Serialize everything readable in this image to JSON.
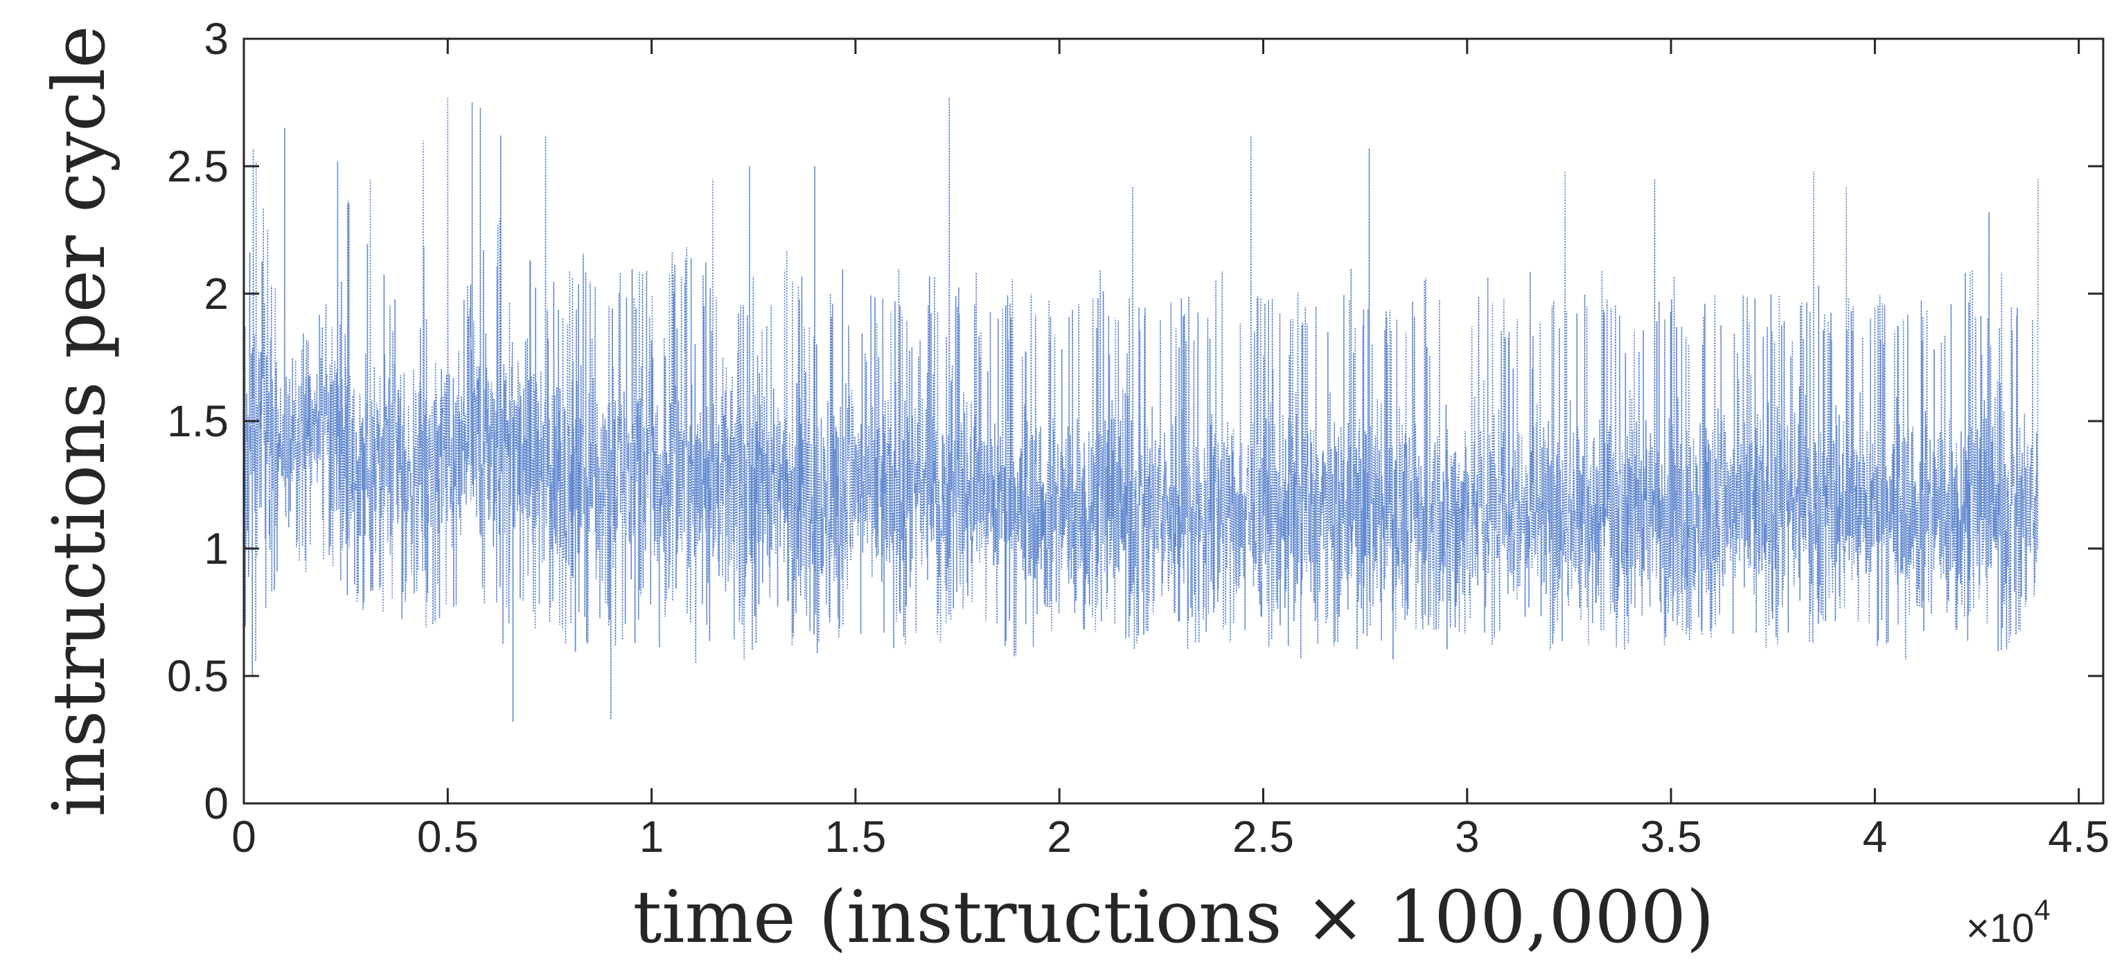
{
  "chart_data": {
    "type": "line",
    "title": "",
    "xlabel": "time (instructions × 100,000)",
    "ylabel": "instructions per cycle",
    "x_multiplier": {
      "prefix": "×",
      "base": "10",
      "exponent": "4"
    },
    "xlim": [
      0,
      45600
    ],
    "ylim": [
      0,
      3
    ],
    "xticks": [
      0,
      5000,
      10000,
      15000,
      20000,
      25000,
      30000,
      35000,
      40000,
      45000
    ],
    "xtick_labels": [
      "0",
      "0.5",
      "1",
      "1.5",
      "2",
      "2.5",
      "3",
      "3.5",
      "4",
      "4.5"
    ],
    "yticks": [
      0,
      0.5,
      1,
      1.5,
      2,
      2.5,
      3
    ],
    "ytick_labels": [
      "0",
      "0.5",
      "1",
      "1.5",
      "2",
      "2.5",
      "3"
    ],
    "grid": false,
    "legend": "none",
    "line_style": "dotted",
    "series": [
      {
        "color": "#3f6fc4",
        "x_step": 200,
        "mean": [
          1.4,
          1.5,
          1.55,
          1.45,
          1.4,
          1.4,
          1.38,
          1.45,
          1.5,
          1.55,
          1.5,
          1.45,
          1.4,
          1.35,
          1.3,
          1.3,
          1.35,
          1.4,
          1.38,
          1.35,
          1.3,
          1.3,
          1.35,
          1.4,
          1.4,
          1.35,
          1.35,
          1.4,
          1.45,
          1.4,
          1.35,
          1.35,
          1.38,
          1.4,
          1.4,
          1.35,
          1.3,
          1.3,
          1.3,
          1.28,
          1.25,
          1.25,
          1.28,
          1.3,
          1.3,
          1.3,
          1.3,
          1.32,
          1.32,
          1.3,
          1.28,
          1.25,
          1.25,
          1.25,
          1.28,
          1.3,
          1.28,
          1.25,
          1.25,
          1.25,
          1.25,
          1.25,
          1.25,
          1.25,
          1.25,
          1.25,
          1.25,
          1.25,
          1.25,
          1.25,
          1.22,
          1.2,
          1.2,
          1.22,
          1.25,
          1.25,
          1.22,
          1.2,
          1.2,
          1.2,
          1.2,
          1.2,
          1.22,
          1.22,
          1.2,
          1.18,
          1.18,
          1.2,
          1.2,
          1.2,
          1.2,
          1.2,
          1.18,
          1.15,
          1.15,
          1.15,
          1.15,
          1.15,
          1.15,
          1.15,
          1.15,
          1.15,
          1.15,
          1.15,
          1.15,
          1.15,
          1.15,
          1.15,
          1.15,
          1.15,
          1.15,
          1.15,
          1.15,
          1.15,
          1.15,
          1.15,
          1.15,
          1.15,
          1.15,
          1.15,
          1.15,
          1.15,
          1.15,
          1.15,
          1.15,
          1.15,
          1.15,
          1.15,
          1.15,
          1.15,
          1.15,
          1.15,
          1.15,
          1.15,
          1.15,
          1.15,
          1.15,
          1.15,
          1.15,
          1.15,
          1.15,
          1.15,
          1.15,
          1.15,
          1.15,
          1.15,
          1.15,
          1.15,
          1.15,
          1.15,
          1.15,
          1.15,
          1.15,
          1.15,
          1.15,
          1.15,
          1.15,
          1.15,
          1.15,
          1.15,
          1.15,
          1.15,
          1.15,
          1.15,
          1.15,
          1.15,
          1.15,
          1.15,
          1.15,
          1.15,
          1.15,
          1.15,
          1.15,
          1.15,
          1.15,
          1.15,
          1.15,
          1.15,
          1.15,
          1.15,
          1.15,
          1.15,
          1.15,
          1.15,
          1.15,
          1.15,
          1.15,
          1.15,
          1.15,
          1.15,
          1.15,
          1.15,
          1.15,
          1.15,
          1.15,
          1.15,
          1.15,
          1.15,
          1.15,
          1.15,
          1.15,
          1.15,
          1.15,
          1.15,
          1.15,
          1.15,
          1.15,
          1.15,
          1.15,
          1.15,
          1.15,
          1.15,
          1.15,
          1.15,
          1.15,
          1.15,
          1.15,
          1.15,
          1.15,
          1.15,
          1.15,
          1.15,
          1.15,
          1.15,
          1.15,
          1.15,
          1.15,
          1.15
        ],
        "max": [
          2.3,
          2.65,
          2.5,
          2.2,
          1.8,
          2.0,
          2.2,
          1.9,
          1.7,
          2.05,
          2.1,
          2.2,
          2.55,
          1.8,
          2.1,
          2.2,
          1.9,
          2.2,
          2.0,
          1.9,
          2.0,
          2.0,
          2.2,
          2.0,
          2.1,
          1.9,
          2.15,
          2.1,
          2.2,
          2.3,
          2.1,
          2.3,
          2.2,
          2.0,
          2.1,
          2.2,
          2.0,
          2.1,
          2.15,
          2.1,
          2.1,
          2.2,
          2.1,
          2.2,
          2.1,
          2.0,
          2.1,
          2.2,
          2.15,
          2.1,
          2.0,
          2.0,
          2.2,
          2.1,
          2.2,
          2.2,
          2.2,
          2.05,
          2.1,
          2.0,
          2.0,
          2.0,
          2.3,
          2.1,
          2.1,
          2.0,
          2.2,
          2.15,
          2.1,
          2.0,
          2.0,
          2.2,
          2.1,
          2.1,
          2.0,
          2.0,
          2.0,
          2.1,
          2.0,
          2.1,
          2.1,
          2.0,
          2.0,
          2.0,
          2.1,
          2.0,
          1.9,
          2.1,
          2.0,
          2.1,
          2.0,
          2.1,
          2.0,
          2.0,
          2.1,
          2.0,
          2.1,
          2.0,
          2.0,
          2.0,
          2.0,
          2.1,
          2.0,
          2.0,
          2.0,
          2.1,
          2.0,
          2.1,
          2.0,
          2.0,
          2.0,
          2.1,
          2.0,
          2.1,
          2.0,
          2.0,
          2.0,
          2.0,
          2.0,
          2.1,
          2.0,
          2.0,
          2.0,
          2.1,
          2.0,
          2.0,
          2.1,
          2.0,
          2.0,
          2.1,
          2.0,
          2.0,
          2.0,
          2.0,
          2.0,
          2.1,
          2.0,
          2.0,
          2.0,
          2.1,
          2.0,
          2.0,
          2.0,
          2.0,
          2.1,
          2.0,
          2.0,
          2.0,
          2.1,
          2.0,
          2.0,
          2.0,
          2.1,
          2.0,
          2.0,
          2.0,
          2.0,
          2.1,
          2.0,
          2.0,
          2.0,
          2.0,
          2.1,
          2.0,
          2.0,
          2.0,
          2.1,
          2.0,
          2.0,
          2.0,
          2.1,
          2.0,
          2.0,
          2.0,
          2.0,
          2.1,
          2.0,
          2.0,
          2.0,
          2.1,
          2.0,
          2.0,
          2.0,
          2.0,
          2.1,
          2.0,
          2.0,
          2.0,
          2.1,
          2.0,
          2.0,
          2.0,
          2.0,
          2.1,
          2.0,
          2.0,
          2.0,
          2.1,
          2.0,
          2.0,
          2.0,
          2.0,
          2.1,
          2.0,
          2.0,
          2.0,
          2.1,
          2.0,
          2.0,
          2.0,
          2.0,
          2.1,
          2.0,
          2.0,
          2.0,
          2.1,
          2.0,
          2.0,
          2.0,
          2.0
        ],
        "min": [
          0.6,
          0.45,
          0.7,
          0.8,
          0.9,
          0.95,
          0.9,
          0.85,
          0.9,
          0.95,
          0.9,
          0.85,
          0.8,
          0.75,
          0.7,
          0.65,
          0.7,
          0.75,
          0.7,
          0.7,
          0.65,
          0.7,
          0.65,
          0.7,
          0.7,
          0.6,
          0.7,
          0.7,
          0.75,
          0.7,
          0.7,
          0.6,
          0.65,
          0.7,
          0.7,
          0.65,
          0.6,
          0.6,
          0.6,
          0.6,
          0.55,
          0.6,
          0.6,
          0.6,
          0.6,
          0.6,
          0.6,
          0.6,
          0.65,
          0.6,
          0.55,
          0.6,
          0.6,
          0.6,
          0.6,
          0.55,
          0.6,
          0.6,
          0.6,
          0.6,
          0.6,
          0.55,
          0.6,
          0.6,
          0.6,
          0.6,
          0.6,
          0.6,
          0.6,
          0.6,
          0.55,
          0.6,
          0.6,
          0.6,
          0.6,
          0.6,
          0.6,
          0.55,
          0.6,
          0.6,
          0.6,
          0.6,
          0.6,
          0.6,
          0.6,
          0.6,
          0.6,
          0.6,
          0.6,
          0.6,
          0.6,
          0.6,
          0.6,
          0.6,
          0.55,
          0.6,
          0.6,
          0.6,
          0.6,
          0.6,
          0.6,
          0.6,
          0.6,
          0.6,
          0.6,
          0.55,
          0.6,
          0.6,
          0.6,
          0.6,
          0.6,
          0.6,
          0.6,
          0.6,
          0.6,
          0.6,
          0.55,
          0.6,
          0.6,
          0.6,
          0.6,
          0.6,
          0.6,
          0.6,
          0.6,
          0.6,
          0.6,
          0.6,
          0.55,
          0.6,
          0.6,
          0.6,
          0.6,
          0.6,
          0.6,
          0.6,
          0.6,
          0.6,
          0.6,
          0.6,
          0.55,
          0.6,
          0.6,
          0.6,
          0.6,
          0.6,
          0.6,
          0.6,
          0.6,
          0.6,
          0.6,
          0.6,
          0.6,
          0.55,
          0.6,
          0.6,
          0.6,
          0.6,
          0.6,
          0.6,
          0.6,
          0.6,
          0.6,
          0.6,
          0.6,
          0.55,
          0.6,
          0.6,
          0.6,
          0.6,
          0.6,
          0.6,
          0.6,
          0.6,
          0.6,
          0.6,
          0.6,
          0.6,
          0.55,
          0.6,
          0.6,
          0.6,
          0.6,
          0.6,
          0.6,
          0.6,
          0.6,
          0.6,
          0.6,
          0.6,
          0.55,
          0.6,
          0.6,
          0.6,
          0.6,
          0.6,
          0.6,
          0.6,
          0.6,
          0.6,
          0.6,
          0.6,
          0.6,
          0.55,
          0.6,
          0.6,
          0.6,
          0.6,
          0.6,
          0.6,
          0.6,
          0.6,
          0.6,
          0.6,
          0.6,
          0.55,
          0.6,
          0.6,
          0.6,
          0.6,
          0.6,
          0.6,
          0.6,
          0.6,
          0.6,
          0.6
        ]
      }
    ],
    "spikes": [
      {
        "x": 300,
        "y": 2.52
      },
      {
        "x": 1000,
        "y": 2.65
      },
      {
        "x": 2300,
        "y": 2.52
      },
      {
        "x": 3100,
        "y": 2.45
      },
      {
        "x": 4400,
        "y": 2.6
      },
      {
        "x": 5000,
        "y": 2.77
      },
      {
        "x": 5600,
        "y": 2.75
      },
      {
        "x": 5800,
        "y": 2.73
      },
      {
        "x": 6300,
        "y": 2.62
      },
      {
        "x": 6600,
        "y": 0.32
      },
      {
        "x": 7400,
        "y": 2.62
      },
      {
        "x": 9000,
        "y": 0.33
      },
      {
        "x": 11500,
        "y": 2.45
      },
      {
        "x": 12400,
        "y": 2.5
      },
      {
        "x": 14000,
        "y": 2.5
      },
      {
        "x": 17300,
        "y": 2.77
      },
      {
        "x": 21800,
        "y": 2.42
      },
      {
        "x": 24700,
        "y": 2.62
      },
      {
        "x": 27600,
        "y": 2.57
      },
      {
        "x": 32400,
        "y": 2.48
      },
      {
        "x": 34600,
        "y": 2.45
      },
      {
        "x": 38500,
        "y": 2.48
      },
      {
        "x": 39300,
        "y": 2.42
      },
      {
        "x": 42800,
        "y": 2.32
      },
      {
        "x": 44000,
        "y": 2.45
      }
    ]
  }
}
